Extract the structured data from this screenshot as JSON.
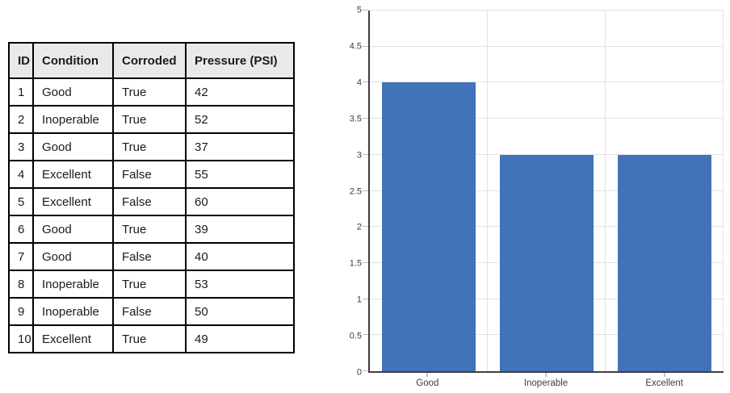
{
  "colors": {
    "bar_fill": "#4272b8",
    "grid_line": "#e2e2e2",
    "axis_line": "#3f3f3f",
    "tick_label": "#3d3d3d",
    "table_header_bg": "#e9e9e9",
    "table_border": "#000000"
  },
  "table": {
    "columns": [
      "ID",
      "Condition",
      "Corroded",
      "Pressure (PSI)"
    ],
    "rows": [
      [
        "1",
        "Good",
        "True",
        "42"
      ],
      [
        "2",
        "Inoperable",
        "True",
        "52"
      ],
      [
        "3",
        "Good",
        "True",
        "37"
      ],
      [
        "4",
        "Excellent",
        "False",
        "55"
      ],
      [
        "5",
        "Excellent",
        "False",
        "60"
      ],
      [
        "6",
        "Good",
        "True",
        "39"
      ],
      [
        "7",
        "Good",
        "False",
        "40"
      ],
      [
        "8",
        "Inoperable",
        "True",
        "53"
      ],
      [
        "9",
        "Inoperable",
        "False",
        "50"
      ],
      [
        "10",
        "Excellent",
        "True",
        "49"
      ]
    ]
  },
  "chart_data": {
    "type": "bar",
    "categories": [
      "Good",
      "Inoperable",
      "Excellent"
    ],
    "values": [
      4,
      3,
      3
    ],
    "title": "",
    "xlabel": "",
    "ylabel": "",
    "ylim": [
      0,
      5
    ],
    "ytick_step": 0.5,
    "ytick_labels": [
      "0",
      "0.5",
      "1",
      "1.5",
      "2",
      "2.5",
      "3",
      "3.5",
      "4",
      "4.5",
      "5"
    ],
    "grid": "horizontal gridlines each 0.5; vertical gridlines at category boundaries and right edge",
    "legend": "none",
    "bar_width_fraction": 0.8
  }
}
